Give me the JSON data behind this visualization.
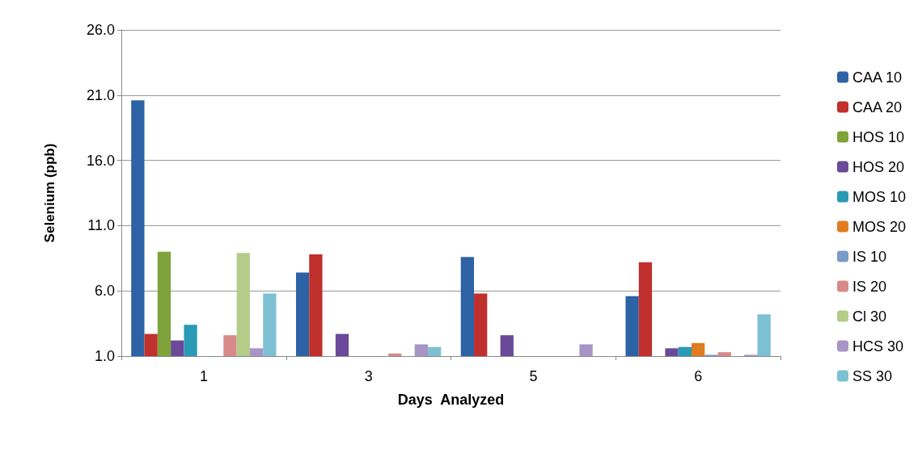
{
  "chart_data": {
    "type": "bar",
    "xlabel": "Days  Analyzed",
    "ylabel": "Selenium (ppb)",
    "categories": [
      "1",
      "3",
      "5",
      "6"
    ],
    "ylim": [
      1,
      26
    ],
    "yticks": [
      {
        "value": 1,
        "label": "1.0"
      },
      {
        "value": 6,
        "label": "6.0"
      },
      {
        "value": 11,
        "label": "11.0"
      },
      {
        "value": 16,
        "label": "16.0"
      },
      {
        "value": 21,
        "label": "21.0"
      },
      {
        "value": 26,
        "label": "26.0"
      }
    ],
    "grid": "y",
    "legend": "right",
    "series": [
      {
        "name": "CAA 10",
        "color": "#2d62a5",
        "values": [
          20.6,
          7.4,
          8.6,
          5.6
        ]
      },
      {
        "name": "CAA 20",
        "color": "#c0302c",
        "values": [
          2.7,
          8.8,
          5.8,
          8.2
        ]
      },
      {
        "name": "HOS 10",
        "color": "#7fa33a",
        "values": [
          9.0,
          1.0,
          1.0,
          1.0
        ]
      },
      {
        "name": "HOS 20",
        "color": "#6a4a98",
        "values": [
          2.2,
          2.7,
          2.6,
          1.6
        ]
      },
      {
        "name": "MOS 10",
        "color": "#2a9ab5",
        "values": [
          3.4,
          1.0,
          1.0,
          1.7
        ]
      },
      {
        "name": "MOS 20",
        "color": "#e07b20",
        "values": [
          1.0,
          1.0,
          1.0,
          2.0
        ]
      },
      {
        "name": "IS 10",
        "color": "#7a9ac8",
        "values": [
          1.0,
          1.0,
          1.0,
          1.1
        ]
      },
      {
        "name": "IS 20",
        "color": "#d88a8a",
        "values": [
          2.6,
          1.2,
          1.0,
          1.3
        ]
      },
      {
        "name": "Cl 30",
        "color": "#b3cc88",
        "values": [
          8.9,
          1.0,
          1.0,
          1.0
        ]
      },
      {
        "name": "HCS 30",
        "color": "#a795c5",
        "values": [
          1.6,
          1.9,
          1.9,
          1.1
        ]
      },
      {
        "name": "SS 30",
        "color": "#7ec0d3",
        "values": [
          5.8,
          1.7,
          1.0,
          4.2
        ]
      }
    ]
  }
}
